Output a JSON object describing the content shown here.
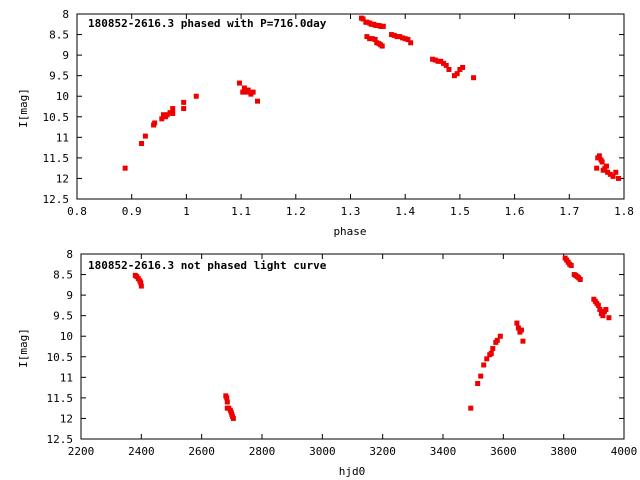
{
  "chart_data": [
    {
      "type": "scatter",
      "title": "180852-2616.3 phased with P=716.0day",
      "xlabel": "phase",
      "ylabel": "I[mag]",
      "xlim": [
        0.8,
        1.8
      ],
      "ylim": [
        8,
        12.5
      ],
      "y_inverted": true,
      "xticks": [
        "0.8",
        "0.9",
        "1",
        "1.1",
        "1.2",
        "1.3",
        "1.4",
        "1.5",
        "1.6",
        "1.7",
        "1.8"
      ],
      "yticks": [
        "8",
        "8.5",
        "9",
        "9.5",
        "10",
        "10.5",
        "11",
        "11.5",
        "12",
        "12.5"
      ],
      "grid": false,
      "marker_color": "#ee0000",
      "series": [
        {
          "x": [
            0.888,
            0.918,
            0.925,
            0.94,
            0.942,
            0.955,
            0.958,
            0.962,
            0.965,
            0.97,
            0.975,
            0.975,
            0.995,
            0.995,
            1.018,
            1.097,
            1.103,
            1.106,
            1.11,
            1.113,
            1.118,
            1.122,
            1.13,
            1.32,
            1.323,
            1.328,
            1.33,
            1.335,
            1.338,
            1.342,
            1.345,
            1.348,
            1.352,
            1.355,
            1.358,
            1.36,
            1.33,
            1.335,
            1.34,
            1.345,
            1.348,
            1.352,
            1.355,
            1.358,
            1.375,
            1.38,
            1.385,
            1.39,
            1.395,
            1.4,
            1.405,
            1.41,
            1.45,
            1.455,
            1.46,
            1.465,
            1.47,
            1.475,
            1.48,
            1.49,
            1.495,
            1.5,
            1.505,
            1.525,
            1.75,
            1.752,
            1.755,
            1.758,
            1.76,
            1.765,
            1.77,
            1.775,
            1.78,
            1.785,
            1.79,
            1.762,
            1.768
          ],
          "y": [
            11.75,
            11.15,
            10.97,
            10.7,
            10.65,
            10.55,
            10.45,
            10.5,
            10.45,
            10.4,
            10.3,
            10.42,
            10.15,
            10.3,
            10.0,
            9.68,
            9.9,
            9.8,
            9.9,
            9.85,
            9.95,
            9.9,
            10.12,
            8.1,
            8.12,
            8.2,
            8.2,
            8.22,
            8.25,
            8.25,
            8.27,
            8.28,
            8.28,
            8.3,
            8.3,
            8.3,
            8.55,
            8.6,
            8.6,
            8.62,
            8.7,
            8.72,
            8.75,
            8.78,
            8.5,
            8.52,
            8.55,
            8.55,
            8.58,
            8.6,
            8.62,
            8.7,
            9.1,
            9.12,
            9.15,
            9.15,
            9.2,
            9.25,
            9.35,
            9.5,
            9.45,
            9.35,
            9.3,
            9.55,
            11.75,
            11.5,
            11.45,
            11.55,
            11.6,
            11.75,
            11.85,
            11.9,
            11.95,
            11.85,
            12.0,
            11.8,
            11.7
          ]
        }
      ]
    },
    {
      "type": "scatter",
      "title": "180852-2616.3 not phased light curve",
      "xlabel": "hjd0",
      "ylabel": "I[mag]",
      "xlim": [
        2200,
        4000
      ],
      "ylim": [
        8,
        12.5
      ],
      "y_inverted": true,
      "xticks": [
        "2200",
        "2400",
        "2600",
        "2800",
        "3000",
        "3200",
        "3400",
        "3600",
        "3800",
        "4000"
      ],
      "yticks": [
        "8",
        "8.5",
        "9",
        "9.5",
        "10",
        "10.5",
        "11",
        "11.5",
        "12",
        "12.5"
      ],
      "grid": false,
      "marker_color": "#ee0000",
      "series": [
        {
          "x": [
            2380,
            2385,
            2390,
            2395,
            2398,
            2400,
            2680,
            2683,
            2685,
            2690,
            2695,
            2698,
            2700,
            2702,
            2705,
            2685,
            3492,
            3515,
            3525,
            3535,
            3545,
            3555,
            3560,
            3565,
            3575,
            3580,
            3590,
            3645,
            3650,
            3655,
            3660,
            3665,
            3805,
            3810,
            3815,
            3820,
            3825,
            3835,
            3840,
            3845,
            3850,
            3855,
            3900,
            3905,
            3910,
            3915,
            3920,
            3925,
            3930,
            3935,
            3940,
            3950
          ],
          "y": [
            8.52,
            8.55,
            8.6,
            8.65,
            8.7,
            8.78,
            11.45,
            11.5,
            11.6,
            11.75,
            11.8,
            11.85,
            11.9,
            11.95,
            12.0,
            11.75,
            11.75,
            11.15,
            10.97,
            10.7,
            10.55,
            10.45,
            10.42,
            10.3,
            10.15,
            10.1,
            10.0,
            9.68,
            9.8,
            9.9,
            9.85,
            10.12,
            8.1,
            8.15,
            8.2,
            8.25,
            8.28,
            8.5,
            8.52,
            8.55,
            8.58,
            8.62,
            9.1,
            9.15,
            9.2,
            9.25,
            9.35,
            9.45,
            9.5,
            9.4,
            9.35,
            9.55
          ]
        }
      ]
    }
  ]
}
